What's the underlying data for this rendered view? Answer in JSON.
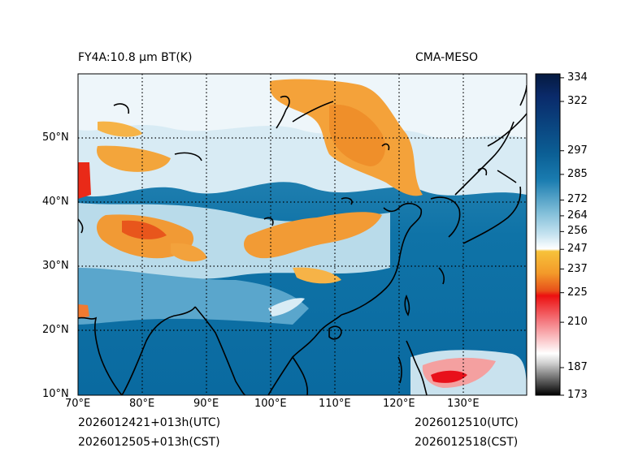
{
  "header": {
    "title_left": "FY4A:10.8 µm BT(K)",
    "title_right": "CMA-MESO"
  },
  "footer": {
    "init_utc": "2026012421+013h(UTC)",
    "init_cst": "2026012505+013h(CST)",
    "valid_utc": "2026012510(UTC)",
    "valid_cst": "2026012518(CST)"
  },
  "map": {
    "lon_labels": [
      "70°E",
      "80°E",
      "90°E",
      "100°E",
      "110°E",
      "120°E",
      "130°E"
    ],
    "lat_labels": [
      "10°N",
      "20°N",
      "30°N",
      "40°N",
      "50°N"
    ]
  },
  "colorbar": {
    "ticks": [
      "334",
      "322",
      "297",
      "285",
      "272",
      "264",
      "256",
      "247",
      "237",
      "225",
      "210",
      "187",
      "173"
    ],
    "tick_values": [
      334,
      322,
      297,
      285,
      272,
      264,
      256,
      247,
      237,
      225,
      210,
      187,
      173
    ],
    "range": [
      173,
      336
    ],
    "colors": {
      "deep_navy": "#051a40",
      "ocean_blue": "#0a6ea3",
      "light_blue": "#a9d2e6",
      "white": "#ffffff",
      "orange": "#f7a03a",
      "red": "#e8101a"
    }
  }
}
